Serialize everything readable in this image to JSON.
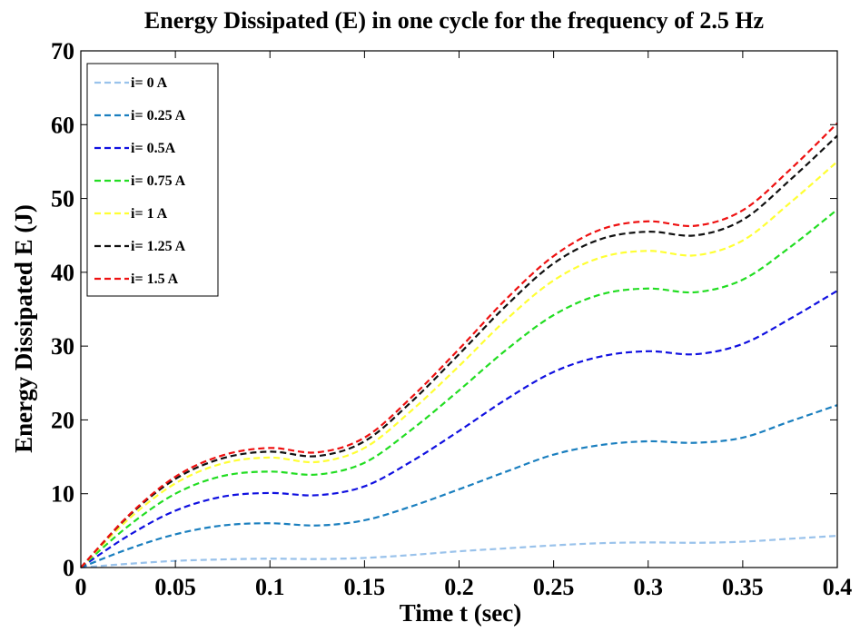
{
  "chart_data": {
    "type": "line",
    "title": "Energy Dissipated (E) in one cycle for the frequency of 2.5 Hz",
    "xlabel": "Time t (sec)",
    "ylabel": "Energy Dissipated E (J)",
    "xlim": [
      0,
      0.4
    ],
    "ylim": [
      0,
      70
    ],
    "xticks": [
      0,
      0.05,
      0.1,
      0.15,
      0.2,
      0.25,
      0.3,
      0.35,
      0.4
    ],
    "xtick_labels": [
      "0",
      "0.05",
      "0.1",
      "0.15",
      "0.2",
      "0.25",
      "0.3",
      "0.35",
      "0.4"
    ],
    "yticks": [
      0,
      10,
      20,
      30,
      40,
      50,
      60,
      70
    ],
    "ytick_labels": [
      "0",
      "10",
      "20",
      "30",
      "40",
      "50",
      "60",
      "70"
    ],
    "grid": false,
    "legend_position": "top-left",
    "x": [
      0,
      0.025,
      0.05,
      0.075,
      0.1,
      0.125,
      0.15,
      0.175,
      0.2,
      0.225,
      0.25,
      0.275,
      0.3,
      0.325,
      0.35,
      0.375,
      0.4
    ],
    "series": [
      {
        "name": "i= 0 A",
        "color": "#99c2eb",
        "values": [
          0,
          0.5,
          0.9,
          1.1,
          1.2,
          1.15,
          1.3,
          1.7,
          2.2,
          2.6,
          3.0,
          3.3,
          3.4,
          3.35,
          3.5,
          3.9,
          4.3
        ]
      },
      {
        "name": "i= 0.25 A",
        "color": "#1a7fbf",
        "values": [
          0,
          2.5,
          4.5,
          5.7,
          6.0,
          5.7,
          6.4,
          8.3,
          10.6,
          13.0,
          15.3,
          16.6,
          17.1,
          16.9,
          17.6,
          19.8,
          22.0
        ]
      },
      {
        "name": "i= 0.5A",
        "color": "#1010e0",
        "values": [
          0,
          4.3,
          7.7,
          9.6,
          10.1,
          9.8,
          11.0,
          14.4,
          18.5,
          22.8,
          26.5,
          28.6,
          29.3,
          28.9,
          30.3,
          33.7,
          37.5
        ]
      },
      {
        "name": "i= 0.75 A",
        "color": "#22dd22",
        "values": [
          0,
          5.6,
          10.0,
          12.4,
          13.0,
          12.6,
          14.2,
          18.7,
          24.0,
          29.5,
          34.2,
          37.0,
          37.8,
          37.3,
          39.0,
          43.4,
          48.5
        ]
      },
      {
        "name": "i= 1 A",
        "color": "#ffff33",
        "values": [
          0,
          6.5,
          11.4,
          14.1,
          14.9,
          14.3,
          16.2,
          21.3,
          27.3,
          33.6,
          38.9,
          42.0,
          42.9,
          42.3,
          44.3,
          49.4,
          55.0
        ]
      },
      {
        "name": "i= 1.25 A",
        "color": "#111111",
        "values": [
          0,
          6.9,
          12.0,
          14.8,
          15.7,
          15.1,
          17.1,
          22.5,
          28.9,
          35.5,
          41.2,
          44.5,
          45.5,
          45.0,
          47.1,
          52.5,
          58.5
        ]
      },
      {
        "name": "i= 1.5 A",
        "color": "#ee1111",
        "values": [
          0,
          7.0,
          12.3,
          15.2,
          16.2,
          15.6,
          17.6,
          23.1,
          29.6,
          36.4,
          42.2,
          45.8,
          46.9,
          46.3,
          48.4,
          53.9,
          60.2
        ]
      }
    ]
  }
}
